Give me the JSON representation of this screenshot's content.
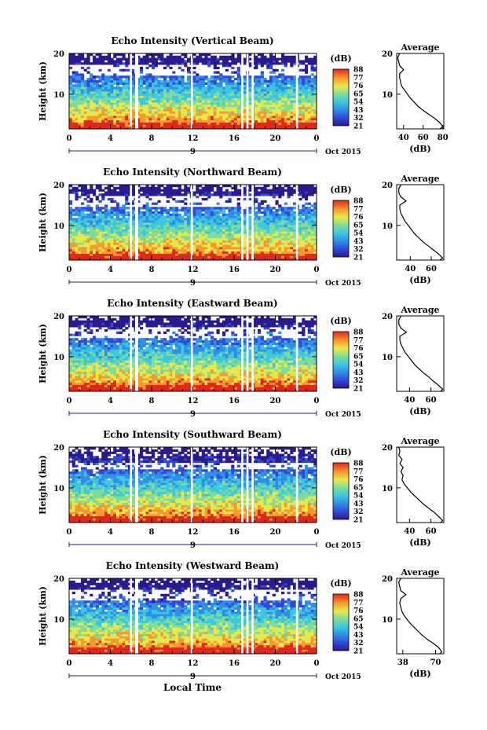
{
  "chart_data": {
    "type": "heatmap",
    "panels": [
      {
        "title": "Echo Intensity (Vertical Beam)",
        "ylabel": "Height (km)",
        "ylim": [
          1.5,
          20
        ],
        "yticks": [
          "10",
          "20"
        ],
        "xticks": [
          "0",
          "4",
          "8",
          "12",
          "16",
          "20",
          "0"
        ],
        "date_marker": "9",
        "date_text": "Oct 2015",
        "colorbar": {
          "unit": "(dB)",
          "ticks": [
            "88",
            "77",
            "76",
            "65",
            "54",
            "43",
            "32",
            "21"
          ]
        },
        "average": {
          "title": "Average",
          "xlabel": "(dB)",
          "xticks": [
            "40",
            "60",
            "80"
          ],
          "xlim": [
            33,
            81
          ]
        }
      },
      {
        "title": "Echo Intensity (Northward Beam)",
        "ylabel": "Height (km)",
        "ylim": [
          1.5,
          20
        ],
        "yticks": [
          "10",
          "20"
        ],
        "xticks": [
          "0",
          "4",
          "8",
          "12",
          "16",
          "20",
          "0"
        ],
        "date_marker": "9",
        "date_text": "Oct 2015",
        "colorbar": {
          "unit": "(dB)",
          "ticks": [
            "88",
            "77",
            "76",
            "65",
            "54",
            "43",
            "32",
            "21"
          ]
        },
        "average": {
          "title": "Average",
          "xlabel": "(dB)",
          "xticks": [
            "40",
            "60"
          ],
          "xlim": [
            27,
            72
          ]
        }
      },
      {
        "title": "Echo Intensity (Eastward Beam)",
        "ylabel": "Height (km)",
        "ylim": [
          1.5,
          20
        ],
        "yticks": [
          "10",
          "20"
        ],
        "xticks": [
          "0",
          "4",
          "8",
          "12",
          "16",
          "20",
          "0"
        ],
        "date_marker": "9",
        "date_text": "Oct 2015",
        "colorbar": {
          "unit": "(dB)",
          "ticks": [
            "88",
            "77",
            "76",
            "65",
            "54",
            "43",
            "32",
            "21"
          ]
        },
        "average": {
          "title": "Average",
          "xlabel": "(dB)",
          "xticks": [
            "40",
            "60"
          ],
          "xlim": [
            28,
            72
          ]
        }
      },
      {
        "title": "Echo Intensity (Southward Beam)",
        "ylabel": "Height (km)",
        "ylim": [
          1.5,
          20
        ],
        "yticks": [
          "10",
          "20"
        ],
        "xticks": [
          "0",
          "4",
          "8",
          "12",
          "16",
          "20",
          "0"
        ],
        "date_marker": "9",
        "date_text": "Oct 2015",
        "colorbar": {
          "unit": "(dB)",
          "ticks": [
            "88",
            "77",
            "76",
            "65",
            "54",
            "43",
            "32",
            "21"
          ]
        },
        "average": {
          "title": "Average",
          "xlabel": "(dB)",
          "xticks": [
            "40",
            "60"
          ],
          "xlim": [
            28,
            72
          ]
        }
      },
      {
        "title": "Echo Intensity (Westward Beam)",
        "ylabel": "Height (km)",
        "ylim": [
          1.5,
          20
        ],
        "yticks": [
          "10",
          "20"
        ],
        "xticks": [
          "0",
          "4",
          "8",
          "12",
          "16",
          "20",
          "0"
        ],
        "date_marker": "9",
        "date_text": "Oct 2015",
        "colorbar": {
          "unit": "(dB)",
          "ticks": [
            "88",
            "77",
            "76",
            "65",
            "54",
            "43",
            "32",
            "21"
          ]
        },
        "average": {
          "title": "Average",
          "xlabel": "(dB)",
          "xticks": [
            "38",
            "70"
          ],
          "xlim": [
            32,
            78
          ]
        }
      }
    ],
    "xlabel": "Local Time",
    "xlim": [
      0,
      24
    ],
    "data_gaps_hours": [
      [
        5.9,
        6.1
      ],
      [
        6.4,
        6.7
      ],
      [
        11.8,
        12.0
      ],
      [
        16.7,
        16.9
      ],
      [
        17.2,
        17.4
      ],
      [
        17.7,
        17.9
      ],
      [
        22.0,
        22.2
      ]
    ],
    "average_profiles": [
      {
        "height": [
          1.5,
          2,
          3,
          4,
          5,
          6,
          7,
          8,
          9,
          10,
          11,
          12,
          13,
          14,
          15,
          16,
          17,
          18,
          19,
          20
        ],
        "db": [
          77,
          80,
          77,
          72,
          66,
          60,
          55,
          51,
          47,
          44,
          41,
          38,
          37,
          36,
          36,
          40,
          36,
          35,
          34,
          36
        ]
      },
      {
        "height": [
          1.5,
          2,
          3,
          4,
          5,
          6,
          7,
          8,
          9,
          10,
          11,
          12,
          13,
          14,
          15,
          16,
          17,
          18,
          19,
          20
        ],
        "db": [
          68,
          71,
          67,
          62,
          57,
          52,
          48,
          44,
          41,
          38,
          35,
          33,
          31,
          30,
          30,
          36,
          31,
          29,
          29,
          31
        ]
      },
      {
        "height": [
          1.5,
          2,
          3,
          4,
          5,
          6,
          7,
          8,
          9,
          10,
          11,
          12,
          13,
          14,
          15,
          16,
          17,
          18,
          19,
          20
        ],
        "db": [
          69,
          71,
          67,
          62,
          58,
          53,
          49,
          45,
          42,
          39,
          36,
          34,
          32,
          31,
          31,
          37,
          32,
          30,
          30,
          32
        ]
      },
      {
        "height": [
          1.5,
          2,
          3,
          4,
          5,
          6,
          7,
          8,
          9,
          10,
          11,
          12,
          13,
          14,
          15,
          16,
          17,
          18,
          19,
          20
        ],
        "db": [
          69,
          71,
          67,
          63,
          58,
          53,
          49,
          45,
          41,
          38,
          35,
          33,
          34,
          32,
          34,
          31,
          33,
          30,
          31,
          30
        ]
      },
      {
        "height": [
          1.5,
          2,
          3,
          4,
          5,
          6,
          7,
          8,
          9,
          10,
          11,
          12,
          13,
          14,
          15,
          16,
          17,
          18,
          19,
          20
        ],
        "db": [
          74,
          76,
          73,
          68,
          62,
          57,
          53,
          49,
          45,
          42,
          39,
          37,
          36,
          35,
          36,
          41,
          36,
          35,
          34,
          36
        ]
      }
    ]
  }
}
